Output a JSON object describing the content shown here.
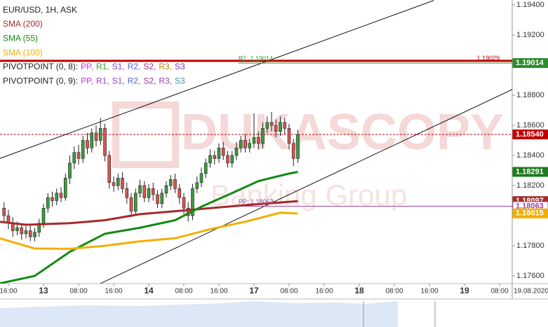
{
  "chart_data": {
    "type": "candlestick",
    "symbol_label": "EUR/USD, 1H, ASK",
    "watermark": [
      "DUKASCOPY",
      "Banking Group"
    ],
    "pivot_legends": [
      {
        "prefix": "PIVOTPOINT (0, 8):",
        "items": [
          {
            "text": "PP,",
            "color": "#cc33cc"
          },
          {
            "text": "R1,",
            "color": "#2e9b2e"
          },
          {
            "text": "S1,",
            "color": "#8844cc"
          },
          {
            "text": "R2,",
            "color": "#5566cc"
          },
          {
            "text": "S2,",
            "color": "#993399"
          },
          {
            "text": "R3,",
            "color": "#b8860b"
          },
          {
            "text": "S3",
            "color": "#8833bb"
          }
        ]
      },
      {
        "prefix": "PIVOTPOINT (0, 9):",
        "items": [
          {
            "text": "PP,",
            "color": "#cc33cc"
          },
          {
            "text": "R1,",
            "color": "#9944cc"
          },
          {
            "text": "S1,",
            "color": "#8844cc"
          },
          {
            "text": "R2,",
            "color": "#5566cc"
          },
          {
            "text": "S2,",
            "color": "#993399"
          },
          {
            "text": "R3,",
            "color": "#9944cc"
          },
          {
            "text": "S3",
            "color": "#339999"
          }
        ]
      }
    ],
    "up_color": "#3d9a3d",
    "down_color": "#d9534f",
    "x": [
      -1,
      0,
      1,
      2,
      3,
      4,
      5,
      6,
      7,
      8,
      9,
      10,
      11,
      12,
      13,
      14,
      15,
      16,
      17,
      18,
      19,
      20,
      21,
      22,
      23,
      24,
      25,
      26,
      27,
      28,
      29,
      30,
      31,
      32,
      33,
      34,
      35,
      36,
      37,
      38,
      39,
      40,
      41,
      42,
      43,
      44,
      45,
      46,
      47,
      48,
      49,
      50,
      51,
      52,
      53,
      54,
      55,
      56,
      57,
      58,
      59,
      60,
      61,
      62,
      63,
      64,
      65,
      66
    ],
    "open": [
      1.1805,
      1.18,
      1.1795,
      1.179,
      1.1792,
      1.1788,
      1.179,
      1.1786,
      1.1789,
      1.1795,
      1.1805,
      1.1812,
      1.181,
      1.1815,
      1.1812,
      1.1825,
      1.1835,
      1.1842,
      1.1838,
      1.185,
      1.1845,
      1.1855,
      1.185,
      1.1858,
      1.184,
      1.1822,
      1.182,
      1.1825,
      1.1818,
      1.1812,
      1.1803,
      1.1815,
      1.182,
      1.1812,
      1.1818,
      1.1814,
      1.1808,
      1.1815,
      1.182,
      1.1824,
      1.1818,
      1.1812,
      1.1805,
      1.18,
      1.1818,
      1.1822,
      1.1828,
      1.1835,
      1.184,
      1.1838,
      1.1845,
      1.184,
      1.1835,
      1.184,
      1.1845,
      1.185,
      1.1845,
      1.1848,
      1.1852,
      1.1848,
      1.1858,
      1.1862,
      1.186,
      1.1856,
      1.1862,
      1.1858,
      1.1848,
      1.1838
    ],
    "high": [
      1.1809,
      1.1804,
      1.1799,
      1.1796,
      1.1795,
      1.1793,
      1.1794,
      1.1792,
      1.1798,
      1.1808,
      1.1815,
      1.1816,
      1.1818,
      1.1819,
      1.1828,
      1.184,
      1.1846,
      1.1847,
      1.1853,
      1.1855,
      1.1858,
      1.186,
      1.1865,
      1.1861,
      1.1843,
      1.1826,
      1.1828,
      1.1829,
      1.1822,
      1.1815,
      1.1818,
      1.1824,
      1.1823,
      1.1821,
      1.1822,
      1.1817,
      1.1818,
      1.1823,
      1.1827,
      1.1828,
      1.1821,
      1.1815,
      1.1809,
      1.1821,
      1.1826,
      1.1832,
      1.1838,
      1.1844,
      1.1843,
      1.1848,
      1.1849,
      1.1843,
      1.1843,
      1.1849,
      1.1853,
      1.1854,
      1.1851,
      1.1868,
      1.1856,
      1.1862,
      1.1866,
      1.1869,
      1.1864,
      1.1866,
      1.1865,
      1.1861,
      1.1851,
      1.1857
    ],
    "low": [
      1.1796,
      1.1791,
      1.1786,
      1.1787,
      1.1784,
      1.1785,
      1.1783,
      1.1783,
      1.1786,
      1.1792,
      1.1802,
      1.1806,
      1.1807,
      1.1809,
      1.181,
      1.1821,
      1.1831,
      1.1834,
      1.1835,
      1.1841,
      1.1842,
      1.1846,
      1.1847,
      1.1836,
      1.1818,
      1.1816,
      1.1817,
      1.1815,
      1.1808,
      1.1799,
      1.18,
      1.1812,
      1.1809,
      1.1809,
      1.181,
      1.1805,
      1.1805,
      1.1812,
      1.1817,
      1.1815,
      1.1808,
      1.1801,
      1.1796,
      1.1797,
      1.1815,
      1.1819,
      1.1825,
      1.1832,
      1.1834,
      1.1835,
      1.1837,
      1.1832,
      1.1832,
      1.1837,
      1.1842,
      1.1842,
      1.1842,
      1.1845,
      1.1844,
      1.1845,
      1.1855,
      1.1856,
      1.1852,
      1.1853,
      1.1854,
      1.1844,
      1.1833,
      1.1835
    ],
    "close": [
      1.18,
      1.1795,
      1.179,
      1.1792,
      1.1788,
      1.179,
      1.1786,
      1.1789,
      1.1795,
      1.1805,
      1.1812,
      1.181,
      1.1815,
      1.1812,
      1.1825,
      1.1835,
      1.1842,
      1.1838,
      1.185,
      1.1845,
      1.1855,
      1.185,
      1.1858,
      1.184,
      1.1822,
      1.182,
      1.1825,
      1.1818,
      1.1812,
      1.1803,
      1.1815,
      1.182,
      1.1812,
      1.1818,
      1.1814,
      1.1808,
      1.1815,
      1.182,
      1.1824,
      1.1818,
      1.1812,
      1.1805,
      1.18,
      1.1818,
      1.1822,
      1.1828,
      1.1835,
      1.184,
      1.1838,
      1.1845,
      1.184,
      1.1835,
      1.184,
      1.1845,
      1.185,
      1.1845,
      1.1848,
      1.1852,
      1.1848,
      1.1858,
      1.1862,
      1.186,
      1.1856,
      1.1862,
      1.1858,
      1.1848,
      1.1838,
      1.1854
    ],
    "series": [
      {
        "name": "SMA (200)",
        "color": "#a52a2a",
        "x": [
          -2,
          4,
          14,
          22,
          30,
          38,
          46,
          54,
          66
        ],
        "values": [
          1.1796,
          1.1794,
          1.1795,
          1.1797,
          1.1801,
          1.1803,
          1.1805,
          1.1807,
          1.18097
        ]
      },
      {
        "name": "SMA (55)",
        "color": "#138a13",
        "x": [
          -2,
          6,
          14,
          22,
          30,
          38,
          44,
          51,
          57,
          64,
          66
        ],
        "values": [
          1.1755,
          1.176,
          1.1776,
          1.1788,
          1.1792,
          1.1797,
          1.1806,
          1.1815,
          1.1823,
          1.1828,
          1.18291
        ]
      },
      {
        "name": "SMA (100)",
        "color": "#f0b000",
        "x": [
          -2,
          6,
          14,
          22,
          30,
          38,
          46,
          54,
          62,
          66
        ],
        "values": [
          1.1785,
          1.17782,
          1.1778,
          1.178,
          1.1783,
          1.1785,
          1.1791,
          1.1796,
          1.1802,
          1.18015
        ]
      }
    ],
    "trendlines": [
      {
        "x": [
          -2,
          97
        ],
        "values": [
          1.1838,
          1.1943
        ]
      },
      {
        "x": [
          21,
          115
        ],
        "values": [
          1.1755,
          1.1884
        ]
      }
    ],
    "levels": [
      {
        "value": 1.19029,
        "label": "1.19029",
        "color": "#c00000",
        "label_position": "right"
      },
      {
        "value": 1.19014,
        "label": "R1: 1.19014",
        "color": "#3a9a3a",
        "label_position": "left"
      },
      {
        "value": 1.18063,
        "label": "PP: 1.18063",
        "color": "#a040a0",
        "label_position": "left"
      },
      {
        "value": 1.1854,
        "color": "#c00000",
        "dashed": true
      }
    ],
    "axis_markers": [
      {
        "value": 1.19014,
        "label": "1.19014",
        "color": "#2e8b2e"
      },
      {
        "value": 1.1854,
        "label": "1.18540",
        "color": "#c00000"
      },
      {
        "value": 1.18291,
        "label": "1.18291",
        "color": "#1e7a1e"
      },
      {
        "value": 1.18097,
        "label": "1.18097",
        "color": "#a52a2a"
      },
      {
        "value": 1.18063,
        "label": "1.18063",
        "color": "#a040a0",
        "outline": true
      },
      {
        "value": 1.18015,
        "label": "1.18015",
        "color": "#f0b000"
      }
    ],
    "xlim": [
      -1.92,
      114.88
    ],
    "xticks": [
      {
        "value": 0,
        "label": "16:00"
      },
      {
        "value": 8,
        "label": "13"
      },
      {
        "value": 16,
        "label": "08:00"
      },
      {
        "value": 24,
        "label": "16:00"
      },
      {
        "value": 32,
        "label": "14"
      },
      {
        "value": 40,
        "label": "08:00"
      },
      {
        "value": 48,
        "label": "16:00"
      },
      {
        "value": 56,
        "label": "17"
      },
      {
        "value": 64,
        "label": "08:00"
      },
      {
        "value": 72,
        "label": "16:00"
      },
      {
        "value": 80,
        "label": "18"
      },
      {
        "value": 88,
        "label": "08:00"
      },
      {
        "value": 96,
        "label": "16:00"
      },
      {
        "value": 104,
        "label": "19"
      },
      {
        "value": 112,
        "label": "08:00"
      }
    ],
    "date_label": "19.08.2020",
    "ylim": [
      1.17549,
      1.19433
    ],
    "yticks": [
      {
        "value": 1.194,
        "label": "1.19400"
      },
      {
        "value": 1.192,
        "label": "1.19200"
      },
      {
        "value": 1.188,
        "label": "1.18800"
      },
      {
        "value": 1.186,
        "label": "1.18600"
      },
      {
        "value": 1.184,
        "label": "1.18400"
      },
      {
        "value": 1.182,
        "label": "1.18200"
      },
      {
        "value": 1.178,
        "label": "1.17800"
      },
      {
        "value": 1.176,
        "label": "1.17600"
      }
    ]
  }
}
